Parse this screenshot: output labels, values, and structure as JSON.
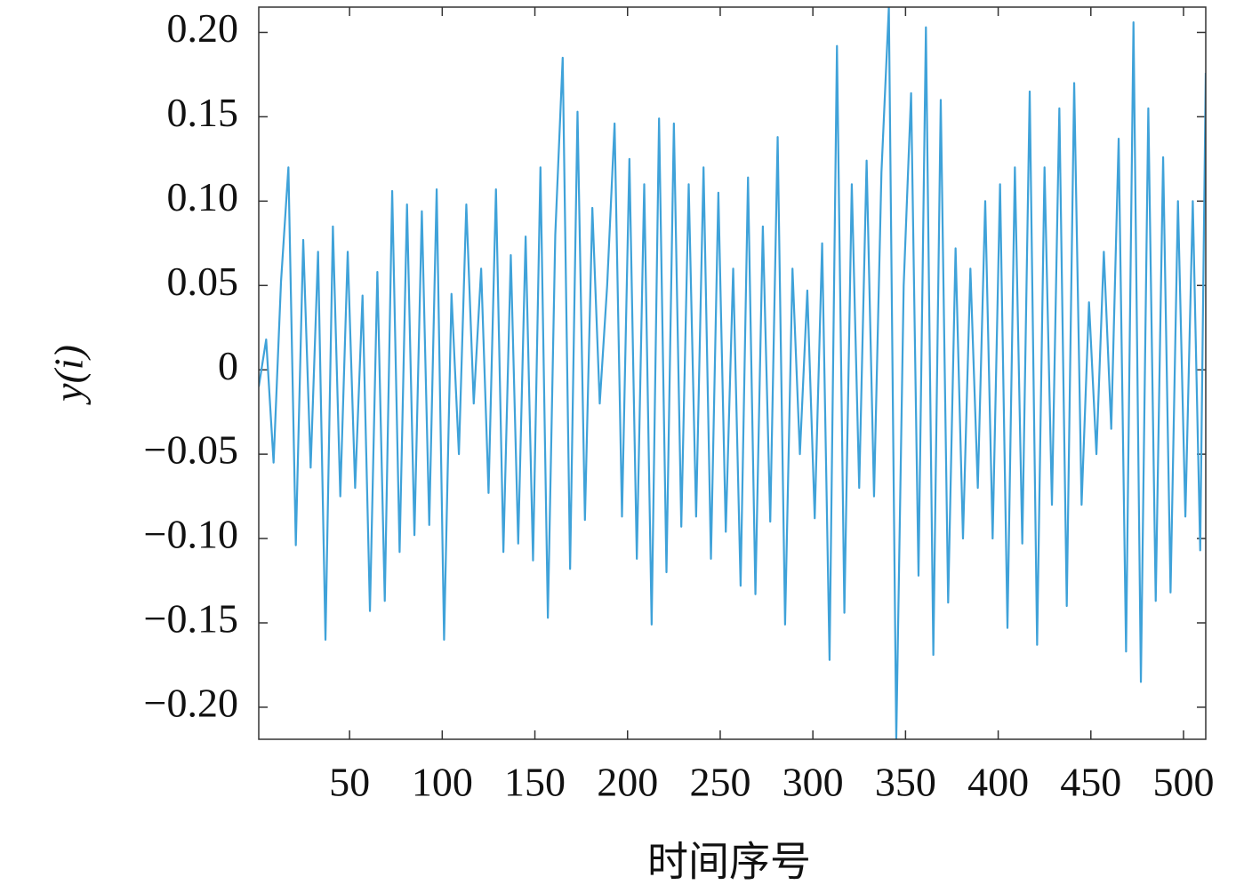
{
  "chart_data": {
    "type": "line",
    "x_label": "时间序号",
    "y_label": "y(i)",
    "x": [
      1,
      5,
      9,
      13,
      17,
      21,
      25,
      29,
      33,
      37,
      41,
      45,
      49,
      53,
      57,
      61,
      65,
      69,
      73,
      77,
      81,
      85,
      89,
      93,
      97,
      101,
      105,
      109,
      113,
      117,
      121,
      125,
      129,
      133,
      137,
      141,
      145,
      149,
      153,
      157,
      161,
      165,
      169,
      173,
      177,
      181,
      185,
      189,
      193,
      197,
      201,
      205,
      209,
      213,
      217,
      221,
      225,
      229,
      233,
      237,
      241,
      245,
      249,
      253,
      257,
      261,
      265,
      269,
      273,
      277,
      281,
      285,
      289,
      293,
      297,
      301,
      305,
      309,
      313,
      317,
      321,
      325,
      329,
      333,
      337,
      341,
      345,
      349,
      353,
      357,
      361,
      365,
      369,
      373,
      377,
      381,
      385,
      389,
      393,
      397,
      401,
      405,
      409,
      413,
      417,
      421,
      425,
      429,
      433,
      437,
      441,
      445,
      449,
      453,
      457,
      461,
      465,
      469,
      473,
      477,
      481,
      485,
      489,
      493,
      497,
      501,
      505,
      509,
      512
    ],
    "series": [
      {
        "name": "y(i)",
        "color": "#3fa2d9",
        "values": [
          -0.01,
          0.018,
          -0.055,
          0.052,
          0.12,
          -0.104,
          0.077,
          -0.058,
          0.07,
          -0.16,
          0.085,
          -0.075,
          0.07,
          -0.07,
          0.044,
          -0.143,
          0.058,
          -0.137,
          0.106,
          -0.108,
          0.098,
          -0.098,
          0.094,
          -0.092,
          0.107,
          -0.16,
          0.045,
          -0.05,
          0.098,
          -0.02,
          0.06,
          -0.073,
          0.107,
          -0.108,
          0.068,
          -0.103,
          0.079,
          -0.113,
          0.12,
          -0.147,
          0.08,
          0.185,
          -0.118,
          0.153,
          -0.089,
          0.096,
          -0.02,
          0.05,
          0.146,
          -0.087,
          0.125,
          -0.112,
          0.11,
          -0.151,
          0.149,
          -0.12,
          0.146,
          -0.093,
          0.11,
          -0.087,
          0.12,
          -0.112,
          0.105,
          -0.096,
          0.06,
          -0.128,
          0.114,
          -0.133,
          0.085,
          -0.09,
          0.138,
          -0.151,
          0.06,
          -0.05,
          0.047,
          -0.088,
          0.075,
          -0.172,
          0.192,
          -0.144,
          0.11,
          -0.07,
          0.124,
          -0.075,
          0.117,
          0.215,
          -0.219,
          0.05,
          0.164,
          -0.122,
          0.203,
          -0.169,
          0.16,
          -0.138,
          0.072,
          -0.1,
          0.06,
          -0.07,
          0.1,
          -0.1,
          0.11,
          -0.153,
          0.12,
          -0.103,
          0.165,
          -0.163,
          0.12,
          -0.08,
          0.155,
          -0.14,
          0.17,
          -0.08,
          0.04,
          -0.05,
          0.07,
          -0.035,
          0.137,
          -0.167,
          0.206,
          -0.185,
          0.155,
          -0.137,
          0.126,
          -0.132,
          0.1,
          -0.087,
          0.1,
          -0.107,
          0.176
        ]
      }
    ],
    "xlim": [
      1,
      512
    ],
    "ylim": [
      -0.219,
      0.215
    ],
    "xticks": [
      50,
      100,
      150,
      200,
      250,
      300,
      350,
      400,
      450,
      500
    ],
    "yticks": [
      {
        "value": 0.2,
        "label": "0.20"
      },
      {
        "value": 0.15,
        "label": "0.15"
      },
      {
        "value": 0.1,
        "label": "0.10"
      },
      {
        "value": 0.05,
        "label": "0.05"
      },
      0,
      {
        "value": -0.05,
        "label": "−0.05"
      },
      {
        "value": -0.1,
        "label": "−0.10"
      },
      {
        "value": -0.15,
        "label": "−0.15"
      },
      {
        "value": -0.2,
        "label": "−0.20"
      }
    ],
    "grid": false
  }
}
